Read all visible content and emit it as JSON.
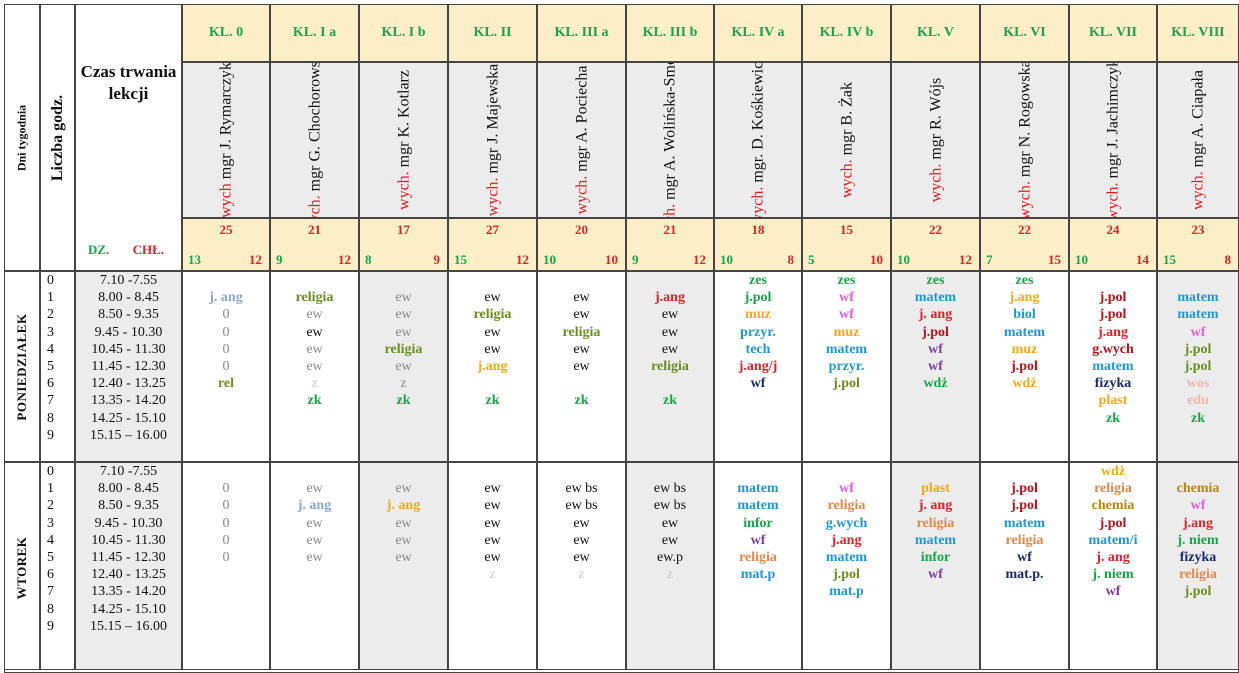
{
  "header": {
    "days_label": "Dni tygodnia",
    "hours_label": "Liczba godz.",
    "time_title": "Czas trwania lekcji",
    "boys_label": "DZ.",
    "girls_label": "CHŁ."
  },
  "classes": [
    {
      "name": "KL. 0",
      "wych": "wych",
      "teacher": "mgr J. Rymarczyk",
      "total": "25",
      "boys": "13",
      "girls": "12"
    },
    {
      "name": "KL.  I a",
      "wych": "wych.",
      "teacher": "mgr G. Chochorowska",
      "total": "21",
      "boys": "9",
      "girls": "12"
    },
    {
      "name": "KL.  I b",
      "wych": "wych.",
      "teacher": "mgr K. Kotlarz",
      "total": "17",
      "boys": "8",
      "girls": "9"
    },
    {
      "name": "KL. II",
      "wych": "wych.",
      "teacher": "mgr J. Majewska",
      "total": "27",
      "boys": "15",
      "girls": "12"
    },
    {
      "name": "KL.  III a",
      "wych": "wych.",
      "teacher": "mgr A. Pociecha",
      "total": "20",
      "boys": "10",
      "girls": "10"
    },
    {
      "name": "KL.  III b",
      "wych": "wych.",
      "teacher": "mgr A. Wolińska-Smoleń",
      "total": "21",
      "boys": "9",
      "girls": "12"
    },
    {
      "name": "KL. IV a",
      "wych": "wych.",
      "teacher": "mgr. D. Kośkiewicz",
      "total": "18",
      "boys": "10",
      "girls": "8"
    },
    {
      "name": "KL. IV b",
      "wych": "wych.",
      "teacher": "mgr B. Żak",
      "total": "15",
      "boys": "5",
      "girls": "10"
    },
    {
      "name": "KL. V",
      "wych": "wych.",
      "teacher": "mgr R. Wójs",
      "total": "22",
      "boys": "10",
      "girls": "12"
    },
    {
      "name": "KL. VI",
      "wych": "wych.",
      "teacher": "mgr N. Rogowska",
      "total": "22",
      "boys": "7",
      "girls": "15"
    },
    {
      "name": "KL. VII",
      "wych": "wych.",
      "teacher": "mgr J. Jachimczyk",
      "total": "24",
      "boys": "10",
      "girls": "14"
    },
    {
      "name": "KL. VIII",
      "wych": "wych.",
      "teacher": "mgr A. Ciapała",
      "total": "23",
      "boys": "15",
      "girls": "8"
    }
  ],
  "hours": [
    "0",
    "1",
    "2",
    "3",
    "4",
    "5",
    "6",
    "7",
    "8",
    "9"
  ],
  "times": [
    "7.10 -7.55",
    "8.00 - 8.45",
    "8.50 - 9.35",
    "9.45 - 10.30",
    "10.45 - 11.30",
    "11.45 - 12.30",
    "12.40 - 13.25",
    "13.35 - 14.20",
    "14.25 - 15.10",
    "15.15 – 16.00"
  ],
  "colors": {
    "header_bg": "#fcefc8",
    "gray_bg": "#ececec",
    "green": "#1aa34a",
    "red": "#d8232a",
    "blue_gray": "#8aa7cc",
    "olive": "#6b8e23",
    "gray": "#8a8a8a",
    "light_gray": "#c9c9c9",
    "black": "#111111",
    "orange": "#f0a81e",
    "magenta": "#e25ae2",
    "darkred": "#b5121b",
    "blue": "#2196d3",
    "navy": "#1a2a6c",
    "purple": "#7b3fa2",
    "pink": "#f0b8b0",
    "brown": "#b8860b",
    "salmon": "#e0884a"
  },
  "days": [
    {
      "name": "PONIEDZIAŁEK",
      "lessons": [
        [
          {
            "t": "",
            "c": "black"
          },
          {
            "t": "j. ang",
            "c": "blue_gray"
          },
          {
            "t": "0",
            "c": "gray"
          },
          {
            "t": "0",
            "c": "gray"
          },
          {
            "t": "0",
            "c": "gray"
          },
          {
            "t": "0",
            "c": "gray"
          },
          {
            "t": "rel",
            "c": "olive"
          }
        ],
        [
          {
            "t": "",
            "c": "black"
          },
          {
            "t": "religia",
            "c": "olive"
          },
          {
            "t": "ew",
            "c": "gray"
          },
          {
            "t": "ew",
            "c": "black"
          },
          {
            "t": "ew",
            "c": "gray"
          },
          {
            "t": "ew",
            "c": "gray"
          },
          {
            "t": "z",
            "c": "light_gray"
          },
          {
            "t": "zk",
            "c": "green"
          }
        ],
        [
          {
            "t": "",
            "c": "black"
          },
          {
            "t": "ew",
            "c": "gray"
          },
          {
            "t": "ew",
            "c": "gray"
          },
          {
            "t": "ew",
            "c": "gray"
          },
          {
            "t": "religia",
            "c": "olive"
          },
          {
            "t": "ew",
            "c": "gray"
          },
          {
            "t": "z",
            "c": "gray"
          },
          {
            "t": "zk",
            "c": "green"
          }
        ],
        [
          {
            "t": "",
            "c": "black"
          },
          {
            "t": "ew",
            "c": "black"
          },
          {
            "t": "religia",
            "c": "olive"
          },
          {
            "t": "ew",
            "c": "black"
          },
          {
            "t": "ew",
            "c": "black"
          },
          {
            "t": "j.ang",
            "c": "orange"
          },
          {
            "t": "",
            "c": "black"
          },
          {
            "t": "zk",
            "c": "green"
          }
        ],
        [
          {
            "t": "",
            "c": "black"
          },
          {
            "t": "ew",
            "c": "black"
          },
          {
            "t": "ew",
            "c": "black"
          },
          {
            "t": "religia",
            "c": "olive"
          },
          {
            "t": "ew",
            "c": "black"
          },
          {
            "t": "ew",
            "c": "black"
          },
          {
            "t": "",
            "c": "black"
          },
          {
            "t": "zk",
            "c": "green"
          }
        ],
        [
          {
            "t": "",
            "c": "black"
          },
          {
            "t": "j.ang",
            "c": "red"
          },
          {
            "t": "ew",
            "c": "black"
          },
          {
            "t": "ew",
            "c": "black"
          },
          {
            "t": "ew",
            "c": "black"
          },
          {
            "t": "religia",
            "c": "olive"
          },
          {
            "t": "",
            "c": "black"
          },
          {
            "t": "zk",
            "c": "green"
          }
        ],
        [
          {
            "t": "zes",
            "c": "green"
          },
          {
            "t": "j.pol",
            "c": "green"
          },
          {
            "t": "muz",
            "c": "orange"
          },
          {
            "t": "przyr.",
            "c": "blue"
          },
          {
            "t": "tech",
            "c": "blue"
          },
          {
            "t": "j.ang/j",
            "c": "red"
          },
          {
            "t": "wf",
            "c": "navy"
          }
        ],
        [
          {
            "t": "zes",
            "c": "green"
          },
          {
            "t": "wf",
            "c": "magenta"
          },
          {
            "t": "wf",
            "c": "magenta"
          },
          {
            "t": "muz",
            "c": "orange"
          },
          {
            "t": "matem",
            "c": "blue"
          },
          {
            "t": "przyr.",
            "c": "blue"
          },
          {
            "t": "j.pol",
            "c": "olive"
          }
        ],
        [
          {
            "t": "zes",
            "c": "green"
          },
          {
            "t": "matem",
            "c": "blue"
          },
          {
            "t": "j. ang",
            "c": "red"
          },
          {
            "t": "j.pol",
            "c": "darkred"
          },
          {
            "t": "wf",
            "c": "purple"
          },
          {
            "t": "wf",
            "c": "purple"
          },
          {
            "t": "wdż",
            "c": "green"
          }
        ],
        [
          {
            "t": "zes",
            "c": "green"
          },
          {
            "t": "j.ang",
            "c": "orange"
          },
          {
            "t": "biol",
            "c": "blue"
          },
          {
            "t": "matem",
            "c": "blue"
          },
          {
            "t": "muz",
            "c": "orange"
          },
          {
            "t": "j.pol",
            "c": "darkred"
          },
          {
            "t": "wdż",
            "c": "orange"
          }
        ],
        [
          {
            "t": "",
            "c": "black"
          },
          {
            "t": "j.pol",
            "c": "darkred"
          },
          {
            "t": "j.pol",
            "c": "darkred"
          },
          {
            "t": "j.ang",
            "c": "red"
          },
          {
            "t": "g.wych",
            "c": "darkred"
          },
          {
            "t": "matem",
            "c": "blue"
          },
          {
            "t": "fizyka",
            "c": "navy"
          },
          {
            "t": "plast",
            "c": "orange"
          },
          {
            "t": "zk",
            "c": "green"
          }
        ],
        [
          {
            "t": "",
            "c": "black"
          },
          {
            "t": "matem",
            "c": "blue"
          },
          {
            "t": "matem",
            "c": "blue"
          },
          {
            "t": "wf",
            "c": "magenta"
          },
          {
            "t": "j.pol",
            "c": "olive"
          },
          {
            "t": "j.pol",
            "c": "olive"
          },
          {
            "t": "wos",
            "c": "pink"
          },
          {
            "t": "edu",
            "c": "pink"
          },
          {
            "t": "zk",
            "c": "green"
          }
        ]
      ]
    },
    {
      "name": "WTOREK",
      "lessons": [
        [
          {
            "t": "",
            "c": "black"
          },
          {
            "t": "0",
            "c": "gray"
          },
          {
            "t": "0",
            "c": "gray"
          },
          {
            "t": "0",
            "c": "gray"
          },
          {
            "t": "0",
            "c": "gray"
          },
          {
            "t": "0",
            "c": "gray"
          }
        ],
        [
          {
            "t": "",
            "c": "black"
          },
          {
            "t": "ew",
            "c": "gray"
          },
          {
            "t": "j. ang",
            "c": "blue_gray"
          },
          {
            "t": "ew",
            "c": "gray"
          },
          {
            "t": "ew",
            "c": "gray"
          },
          {
            "t": "ew",
            "c": "gray"
          }
        ],
        [
          {
            "t": "",
            "c": "black"
          },
          {
            "t": "ew",
            "c": "gray"
          },
          {
            "t": "j. ang",
            "c": "orange"
          },
          {
            "t": "ew",
            "c": "gray"
          },
          {
            "t": "ew",
            "c": "gray"
          },
          {
            "t": "ew",
            "c": "gray"
          }
        ],
        [
          {
            "t": "",
            "c": "black"
          },
          {
            "t": "ew",
            "c": "black"
          },
          {
            "t": "ew",
            "c": "black"
          },
          {
            "t": "ew",
            "c": "black"
          },
          {
            "t": "ew",
            "c": "black"
          },
          {
            "t": "ew",
            "c": "black"
          },
          {
            "t": "z",
            "c": "light_gray"
          }
        ],
        [
          {
            "t": "",
            "c": "black"
          },
          {
            "t": "ew bs",
            "c": "black"
          },
          {
            "t": "ew bs",
            "c": "black"
          },
          {
            "t": "ew",
            "c": "black"
          },
          {
            "t": "ew",
            "c": "black"
          },
          {
            "t": "ew",
            "c": "black"
          },
          {
            "t": "z",
            "c": "light_gray"
          }
        ],
        [
          {
            "t": "",
            "c": "black"
          },
          {
            "t": "ew bs",
            "c": "black"
          },
          {
            "t": "ew bs",
            "c": "black"
          },
          {
            "t": "ew",
            "c": "black"
          },
          {
            "t": "ew",
            "c": "black"
          },
          {
            "t": "ew.p",
            "c": "black"
          },
          {
            "t": "z",
            "c": "light_gray"
          }
        ],
        [
          {
            "t": "",
            "c": "black"
          },
          {
            "t": "matem",
            "c": "blue"
          },
          {
            "t": "matem",
            "c": "blue"
          },
          {
            "t": "infor",
            "c": "green"
          },
          {
            "t": "wf",
            "c": "purple"
          },
          {
            "t": "religia",
            "c": "salmon"
          },
          {
            "t": "mat.p",
            "c": "blue"
          }
        ],
        [
          {
            "t": "",
            "c": "black"
          },
          {
            "t": "wf",
            "c": "magenta"
          },
          {
            "t": "religia",
            "c": "salmon"
          },
          {
            "t": "g.wych",
            "c": "blue"
          },
          {
            "t": "j.ang",
            "c": "red"
          },
          {
            "t": "matem",
            "c": "blue"
          },
          {
            "t": "j.pol",
            "c": "olive"
          },
          {
            "t": "mat.p",
            "c": "blue"
          }
        ],
        [
          {
            "t": "",
            "c": "black"
          },
          {
            "t": "plast",
            "c": "orange"
          },
          {
            "t": "j. ang",
            "c": "red"
          },
          {
            "t": "religia",
            "c": "salmon"
          },
          {
            "t": "matem",
            "c": "blue"
          },
          {
            "t": "infor",
            "c": "green"
          },
          {
            "t": "wf",
            "c": "purple"
          }
        ],
        [
          {
            "t": "",
            "c": "black"
          },
          {
            "t": "j.pol",
            "c": "darkred"
          },
          {
            "t": "j.pol",
            "c": "darkred"
          },
          {
            "t": "matem",
            "c": "blue"
          },
          {
            "t": "religia",
            "c": "salmon"
          },
          {
            "t": "wf",
            "c": "navy"
          },
          {
            "t": "mat.p.",
            "c": "navy"
          }
        ],
        [
          {
            "t": "wdż",
            "c": "orange"
          },
          {
            "t": "religia",
            "c": "salmon"
          },
          {
            "t": "chemia",
            "c": "brown"
          },
          {
            "t": "j.pol",
            "c": "darkred"
          },
          {
            "t": "matem/i",
            "c": "blue"
          },
          {
            "t": "j. ang",
            "c": "red"
          },
          {
            "t": "j. niem",
            "c": "green"
          },
          {
            "t": "wf",
            "c": "purple"
          }
        ],
        [
          {
            "t": "",
            "c": "black"
          },
          {
            "t": "chemia",
            "c": "brown"
          },
          {
            "t": "wf",
            "c": "magenta"
          },
          {
            "t": "j.ang",
            "c": "red"
          },
          {
            "t": "j. niem",
            "c": "green"
          },
          {
            "t": "fizyka",
            "c": "navy"
          },
          {
            "t": "religia",
            "c": "salmon"
          },
          {
            "t": "j.pol",
            "c": "olive"
          }
        ]
      ]
    }
  ]
}
